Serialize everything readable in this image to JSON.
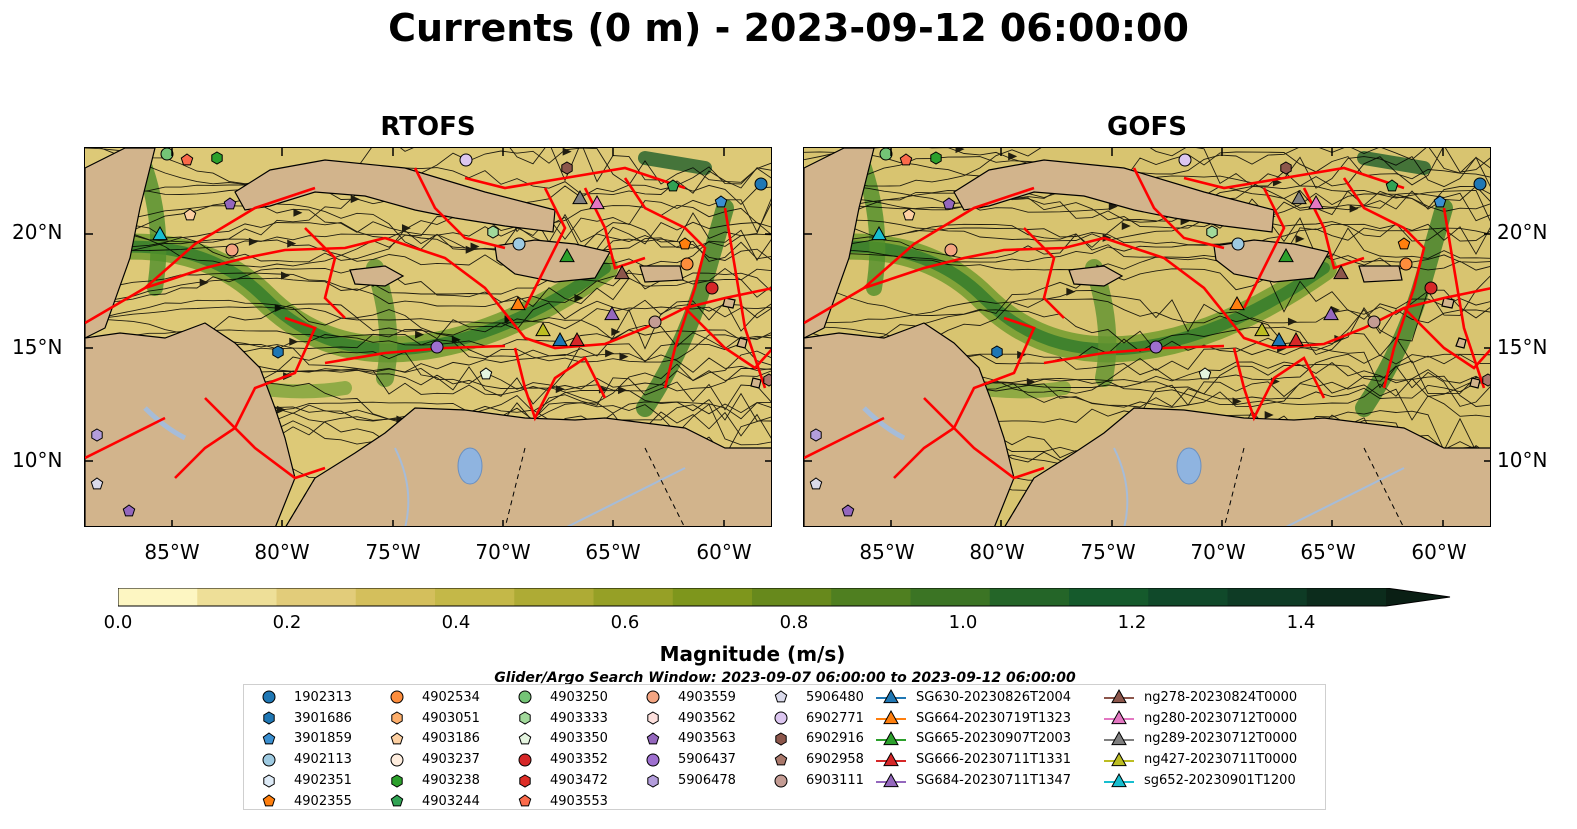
{
  "title": "Currents (0 m) - 2023-09-12 06:00:00",
  "panels": [
    {
      "id": "rtofs",
      "title": "RTOFS"
    },
    {
      "id": "gofs",
      "title": "GOFS"
    }
  ],
  "lat_ticks": [
    "20°N",
    "15°N",
    "10°N"
  ],
  "lon_ticks": [
    "85°W",
    "80°W",
    "75°W",
    "70°W",
    "65°W",
    "60°W"
  ],
  "colorbar": {
    "label": "Magnitude (m/s)",
    "ticks": [
      "0.0",
      "0.2",
      "0.4",
      "0.6",
      "0.8",
      "1.0",
      "1.2",
      "1.4"
    ],
    "colors": [
      "#fdf6c2",
      "#eedf98",
      "#e2cc7a",
      "#d4bf5c",
      "#c4b848",
      "#aeab35",
      "#96a026",
      "#7e961c",
      "#67891c",
      "#4f7f20",
      "#3b7424",
      "#246528",
      "#155a2c",
      "#10492a",
      "#0e3b25",
      "#0c2c1c"
    ],
    "extend_color": "#0a1f14"
  },
  "map_colors": {
    "land": "#d2b48c",
    "route": "#ff0000",
    "lake": "#8fb4e0",
    "river": "#a6bcd8"
  },
  "search_window": "Glider/Argo Search Window: 2023-09-07 06:00:00 to 2023-09-12 06:00:00",
  "legend": {
    "columns": [
      [
        {
          "label": "1902313",
          "marker": "circle",
          "color": "#1f77b4"
        },
        {
          "label": "3901686",
          "marker": "hexagon",
          "color": "#1f77b4"
        },
        {
          "label": "3901859",
          "marker": "pentagon",
          "color": "#3a8fd0"
        },
        {
          "label": "4902113",
          "marker": "circle",
          "color": "#9ecae1"
        },
        {
          "label": "4902351",
          "marker": "hexagon",
          "color": "#deebf7"
        },
        {
          "label": "4902355",
          "marker": "pentagon",
          "color": "#ff7f0e"
        }
      ],
      [
        {
          "label": "4902534",
          "marker": "circle",
          "color": "#fd8d3c"
        },
        {
          "label": "4903051",
          "marker": "hexagon",
          "color": "#fdae6b"
        },
        {
          "label": "4903186",
          "marker": "pentagon",
          "color": "#fdd0a2"
        },
        {
          "label": "4903237",
          "marker": "circle",
          "color": "#feedde"
        },
        {
          "label": "4903238",
          "marker": "hexagon",
          "color": "#2ca02c"
        },
        {
          "label": "4903244",
          "marker": "pentagon",
          "color": "#31a354"
        }
      ],
      [
        {
          "label": "4903250",
          "marker": "circle",
          "color": "#74c476"
        },
        {
          "label": "4903333",
          "marker": "hexagon",
          "color": "#a1d99b"
        },
        {
          "label": "4903350",
          "marker": "pentagon",
          "color": "#e5f5e0"
        },
        {
          "label": "4903352",
          "marker": "circle",
          "color": "#d62728"
        },
        {
          "label": "4903472",
          "marker": "hexagon",
          "color": "#de2d26"
        },
        {
          "label": "4903553",
          "marker": "pentagon",
          "color": "#fb6a4a"
        }
      ],
      [
        {
          "label": "4903559",
          "marker": "circle",
          "color": "#f4a582"
        },
        {
          "label": "4903562",
          "marker": "hexagon",
          "color": "#fde0dd"
        },
        {
          "label": "4903563",
          "marker": "pentagon",
          "color": "#9467bd"
        },
        {
          "label": "5906437",
          "marker": "circle",
          "color": "#9e6fcf"
        },
        {
          "label": "5906478",
          "marker": "hexagon",
          "color": "#b39ddb"
        }
      ],
      [
        {
          "label": "5906480",
          "marker": "pentagon",
          "color": "#dadaeb"
        },
        {
          "label": "6902771",
          "marker": "circle",
          "color": "#dcc6f0"
        },
        {
          "label": "6902916",
          "marker": "hexagon",
          "color": "#8c564b"
        },
        {
          "label": "6902958",
          "marker": "pentagon",
          "color": "#a9786b"
        },
        {
          "label": "6903111",
          "marker": "circle",
          "color": "#c49c94"
        }
      ],
      [
        {
          "label": "SG630-20230826T2004",
          "marker": "triangle-line",
          "color": "#1f77b4"
        },
        {
          "label": "SG664-20230719T1323",
          "marker": "triangle-line",
          "color": "#ff7f0e"
        },
        {
          "label": "SG665-20230907T2003",
          "marker": "triangle-line",
          "color": "#2ca02c"
        },
        {
          "label": "SG666-20230711T1331",
          "marker": "triangle-line",
          "color": "#d62728"
        },
        {
          "label": "SG684-20230711T1347",
          "marker": "triangle-line",
          "color": "#9467bd"
        }
      ],
      [
        {
          "label": "ng278-20230824T0000",
          "marker": "triangle-line",
          "color": "#8c564b"
        },
        {
          "label": "ng280-20230712T0000",
          "marker": "triangle-line",
          "color": "#e377c2"
        },
        {
          "label": "ng289-20230712T0000",
          "marker": "triangle-line",
          "color": "#7f7f7f"
        },
        {
          "label": "ng427-20230711T0000",
          "marker": "triangle-line",
          "color": "#bcbd22"
        },
        {
          "label": "sg652-20230901T1200",
          "marker": "triangle-line",
          "color": "#17becf"
        }
      ]
    ]
  }
}
